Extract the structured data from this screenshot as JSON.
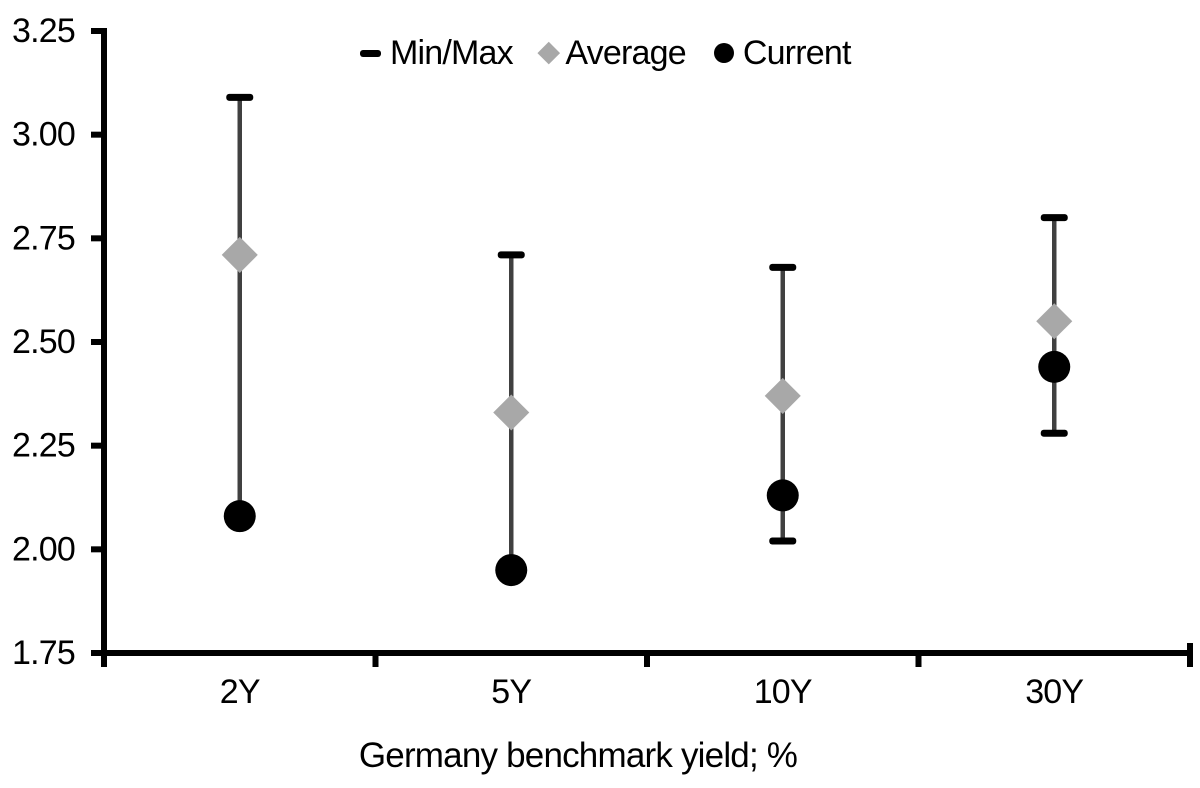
{
  "chart_data": {
    "type": "scatter",
    "subtype": "min-max-range-with-average-and-current",
    "title": "",
    "xlabel": "Germany benchmark yield; %",
    "ylabel": "",
    "categories": [
      "2Y",
      "5Y",
      "10Y",
      "30Y"
    ],
    "series": [
      {
        "name": "Min/Max",
        "marker": "dash-capped-range",
        "min": [
          2.08,
          1.95,
          2.02,
          2.28
        ],
        "max": [
          3.09,
          2.71,
          2.68,
          2.8
        ]
      },
      {
        "name": "Average",
        "marker": "diamond",
        "values": [
          2.71,
          2.33,
          2.37,
          2.55
        ]
      },
      {
        "name": "Current",
        "marker": "circle",
        "values": [
          2.08,
          1.95,
          2.13,
          2.44
        ]
      }
    ],
    "ylim": [
      1.75,
      3.25
    ],
    "ytick_step": 0.25,
    "yticks_top_to_bottom": [
      "3.25",
      "3.00",
      "2.75",
      "2.50",
      "2.25",
      "2.00",
      "1.75"
    ],
    "grid": "off",
    "legend_position": "top-center"
  },
  "legend": {
    "items": [
      {
        "label": "Min/Max",
        "marker": "dash-icon"
      },
      {
        "label": "Average",
        "marker": "diamond-icon"
      },
      {
        "label": "Current",
        "marker": "circle-icon"
      }
    ]
  },
  "colors": {
    "background": "#ffffff",
    "axis": "#000000",
    "text": "#000000",
    "range_line": "#404040",
    "minmax_cap": "#000000",
    "average_marker": "#a8a8a8",
    "current_marker": "#000000"
  }
}
